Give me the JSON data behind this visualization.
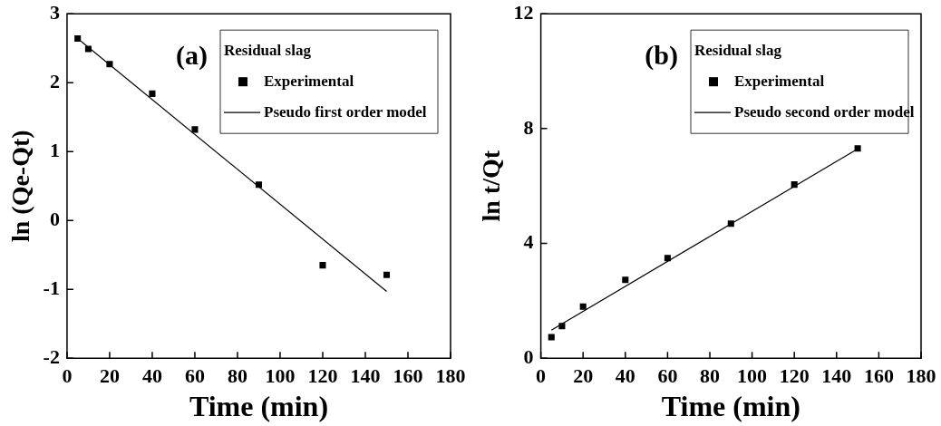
{
  "chart_data": [
    {
      "type": "scatter",
      "xlabel": "Time (min)",
      "ylabel": "ln (Qe-Qt)",
      "legend_title": "Residual slag",
      "annotations": [
        "(a)"
      ],
      "xlim": [
        0,
        180
      ],
      "xticks": [
        0,
        20,
        40,
        60,
        80,
        100,
        120,
        140,
        160,
        180
      ],
      "ylim": [
        -2,
        3
      ],
      "yticks": [
        -2,
        -1,
        0,
        1,
        2,
        3
      ],
      "legend": "top right",
      "series": [
        {
          "name": "Experimental",
          "type": "scatter",
          "marker": "square",
          "color": "#000000",
          "x": [
            5,
            10,
            20,
            40,
            60,
            90,
            120,
            150
          ],
          "values": [
            2.64,
            2.49,
            2.27,
            1.84,
            1.32,
            0.52,
            -0.65,
            -0.79
          ]
        },
        {
          "name": "Pseudo first order model",
          "type": "line",
          "marker": "none",
          "color": "#000000",
          "x": [
            5,
            150
          ],
          "values": [
            2.64,
            -1.03
          ]
        }
      ]
    },
    {
      "type": "scatter",
      "xlabel": "Time (min)",
      "ylabel": "ln t/Qt",
      "legend_title": "Residual slag",
      "annotations": [
        "(b)"
      ],
      "xlim": [
        0,
        180
      ],
      "xticks": [
        0,
        20,
        40,
        60,
        80,
        100,
        120,
        140,
        160,
        180
      ],
      "ylim": [
        0,
        12
      ],
      "yticks": [
        0,
        4,
        8,
        12
      ],
      "legend": "top right",
      "series": [
        {
          "name": "Experimental",
          "type": "scatter",
          "marker": "square",
          "color": "#000000",
          "x": [
            5,
            10,
            20,
            40,
            60,
            90,
            120,
            150
          ],
          "values": [
            0.73,
            1.12,
            1.8,
            2.73,
            3.49,
            4.69,
            6.05,
            7.31
          ]
        },
        {
          "name": "Pseudo second order model",
          "type": "line",
          "marker": "none",
          "color": "#000000",
          "x": [
            5,
            150
          ],
          "values": [
            0.98,
            7.29
          ]
        }
      ]
    }
  ]
}
